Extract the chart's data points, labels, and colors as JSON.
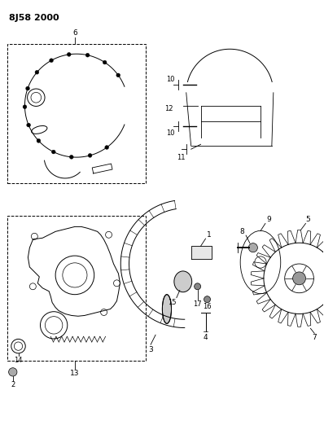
{
  "title": "8J58 2000",
  "bg_color": "#ffffff",
  "line_color": "#000000",
  "fig_width": 3.98,
  "fig_height": 5.33,
  "dpi": 100,
  "title_fontsize": 8,
  "title_fontweight": "bold"
}
